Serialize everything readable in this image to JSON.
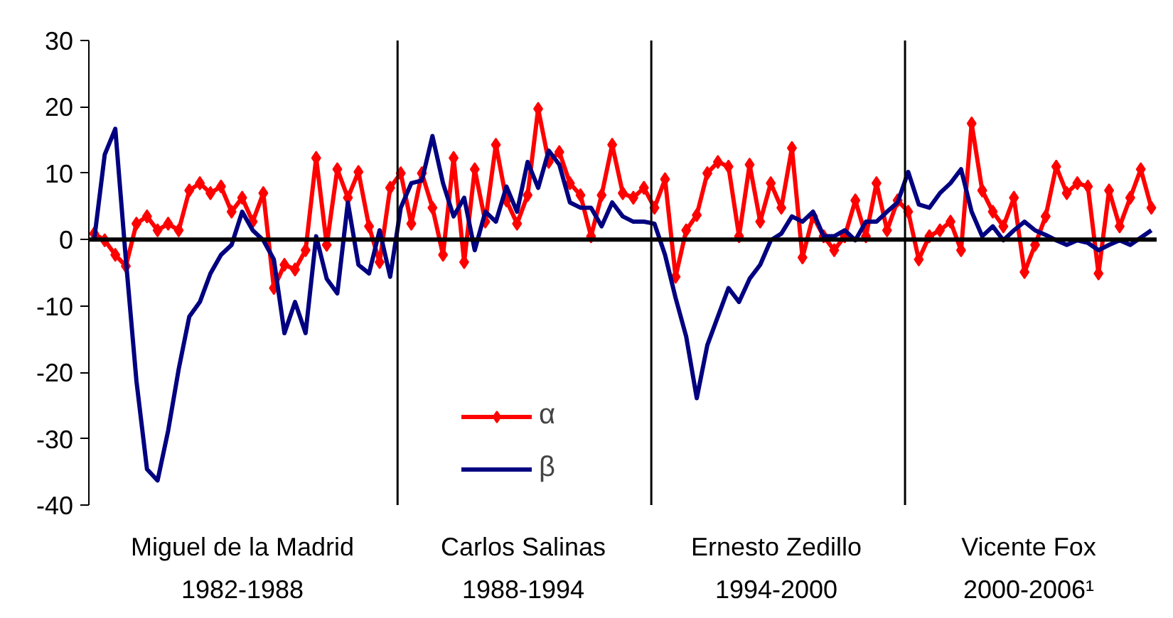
{
  "chart_data": {
    "type": "line",
    "categories": [
      null,
      null,
      null,
      null,
      null,
      null,
      null,
      null,
      null,
      null,
      null,
      null,
      null,
      null,
      null,
      null,
      null,
      null,
      null,
      null,
      null,
      null,
      null,
      null,
      null,
      null,
      null,
      null,
      null,
      null,
      null,
      null,
      null,
      null,
      null,
      null,
      null,
      null,
      null,
      null,
      null,
      null,
      null,
      null,
      null,
      null,
      null,
      null,
      null,
      null,
      null,
      null,
      null,
      null,
      null,
      null,
      null,
      null,
      null,
      null,
      null,
      null,
      null,
      null,
      null,
      null,
      null,
      null,
      null,
      null,
      null,
      null,
      null,
      null,
      null,
      null,
      null,
      null,
      null,
      null,
      null,
      null,
      null,
      null,
      null,
      null,
      null,
      null,
      null,
      null,
      null,
      null,
      null,
      null,
      null,
      null,
      null,
      null,
      null,
      null,
      null
    ],
    "ylim": [
      -40,
      30
    ],
    "yticks": [
      -40,
      -30,
      -20,
      -10,
      0,
      10,
      20,
      30
    ],
    "tick_labels": "y",
    "legend": "bottom",
    "series": [
      {
        "name": "α",
        "color": "#ff0000",
        "marker": "diamond",
        "values": [
          0.9,
          -0.1,
          -2.3,
          -4,
          2.4,
          3.5,
          1.4,
          2.4,
          1.4,
          7.4,
          8.5,
          7,
          8,
          4.2,
          6.3,
          2.7,
          7,
          -7.3,
          -3.8,
          -4.5,
          -1.6,
          12.3,
          -0.8,
          10.6,
          6.3,
          10.2,
          2,
          -3.4,
          7.8,
          10,
          2.4,
          10,
          4.8,
          -2.3,
          12.3,
          -3.4,
          10.6,
          2.7,
          14.3,
          5.9,
          2.4,
          6.7,
          19.7,
          11.7,
          13.2,
          8.5,
          6.7,
          0.5,
          6.7,
          14.3,
          7,
          6.3,
          7.8,
          4.8,
          9.1,
          -5.6,
          1.4,
          3.7,
          10,
          11.7,
          11,
          0.5,
          11.3,
          2.7,
          8.5,
          4.8,
          13.8,
          -2.7,
          3.5,
          0.5,
          -1.6,
          0.5,
          5.9,
          0.5,
          8.5,
          1.4,
          5.9,
          4.2,
          -3,
          0.5,
          1.4,
          2.7,
          -1.6,
          17.5,
          7.4,
          4.2,
          2,
          6.3,
          -4.9,
          -0.8,
          3.5,
          11,
          7,
          8.5,
          8,
          -5.1,
          7.4,
          2,
          6.3,
          10.6,
          4.8
        ]
      },
      {
        "name": "β",
        "color": "#000080",
        "values": [
          -0.1,
          12.8,
          16.7,
          -3,
          -21.3,
          -34.6,
          -36.3,
          -28.8,
          -19.5,
          -11.6,
          -9.4,
          -5.1,
          -2.3,
          -0.8,
          4.2,
          1.4,
          -0.1,
          -3,
          -14.1,
          -9.4,
          -14.1,
          0.5,
          -5.9,
          -8.1,
          5.6,
          -3.8,
          -5.1,
          1.4,
          -5.6,
          4.8,
          8.5,
          8.9,
          15.6,
          8.5,
          3.5,
          6.3,
          -1.6,
          4.2,
          2.7,
          8,
          4.2,
          11.7,
          7.8,
          13.4,
          11.3,
          5.6,
          4.8,
          4.8,
          2,
          5.6,
          3.5,
          2.7,
          2.7,
          2.4,
          -2.3,
          -8.8,
          -14.6,
          -23.9,
          -15.9,
          -11.6,
          -7.3,
          -9.4,
          -5.9,
          -3.8,
          -0.1,
          0.9,
          3.5,
          2.7,
          4.2,
          0.5,
          0.5,
          1.4,
          -0.1,
          2.7,
          2.7,
          4.2,
          5.6,
          10.2,
          5.3,
          4.8,
          7,
          8.5,
          10.6,
          4.2,
          0.5,
          2,
          -0.1,
          1.4,
          2.7,
          1.4,
          0.7,
          -0.1,
          -0.8,
          -0.1,
          -0.5,
          -1.6,
          -0.8,
          -0.1,
          -0.8,
          0.3,
          1.4
        ]
      }
    ],
    "ref_lines": [
      {
        "axis": "y",
        "value": 0,
        "color": "#000000"
      }
    ],
    "annotations": [
      "Miguel de la Madrid\n1982-1988",
      "Carlos Salinas\n1988-1994",
      "Ernesto Zedillo\n1994-2000",
      "Vicente Fox\n2000-2006¹"
    ]
  }
}
